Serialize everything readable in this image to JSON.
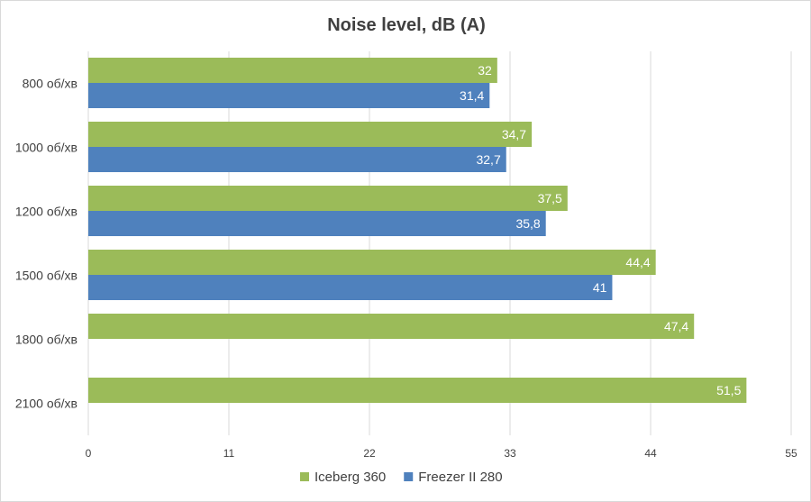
{
  "chart_data": {
    "type": "bar",
    "orientation": "horizontal",
    "title": "Noise level, dB (A)",
    "categories": [
      "800 об/хв",
      "1000 об/хв",
      "1200 об/хв",
      "1500 об/хв",
      "1800 об/хв",
      "2100 об/хв"
    ],
    "series": [
      {
        "name": "Iceberg 360",
        "color": "#9bbb59",
        "values": [
          32,
          34.7,
          37.5,
          44.4,
          47.4,
          51.5
        ],
        "labels": [
          "32",
          "34,7",
          "37,5",
          "44,4",
          "47,4",
          "51,5"
        ]
      },
      {
        "name": "Freezer II 280",
        "color": "#4f81bd",
        "values": [
          31.4,
          32.7,
          35.8,
          41,
          null,
          null
        ],
        "labels": [
          "31,4",
          "32,7",
          "35,8",
          "41",
          "",
          ""
        ]
      }
    ],
    "xlim": [
      0,
      55
    ],
    "xticks": [
      0,
      11,
      22,
      33,
      44,
      55
    ],
    "grid": true,
    "gridline_color": "#d9d9d9",
    "legend_position": "bottom"
  }
}
